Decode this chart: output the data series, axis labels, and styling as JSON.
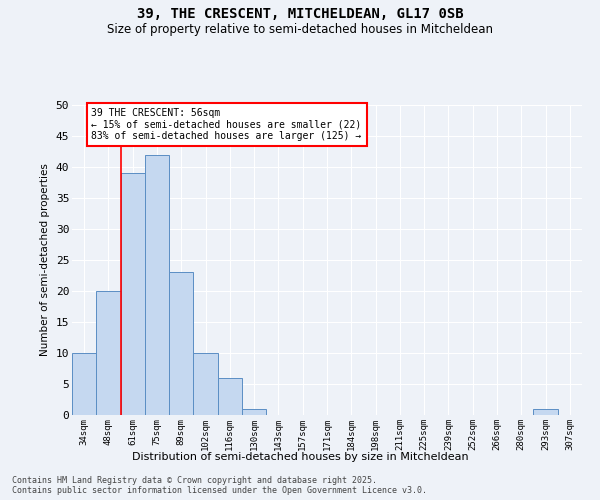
{
  "title": "39, THE CRESCENT, MITCHELDEAN, GL17 0SB",
  "subtitle": "Size of property relative to semi-detached houses in Mitcheldean",
  "xlabel": "Distribution of semi-detached houses by size in Mitcheldean",
  "ylabel": "Number of semi-detached properties",
  "bar_labels": [
    "34sqm",
    "48sqm",
    "61sqm",
    "75sqm",
    "89sqm",
    "102sqm",
    "116sqm",
    "130sqm",
    "143sqm",
    "157sqm",
    "171sqm",
    "184sqm",
    "198sqm",
    "211sqm",
    "225sqm",
    "239sqm",
    "252sqm",
    "266sqm",
    "280sqm",
    "293sqm",
    "307sqm"
  ],
  "bar_values": [
    10,
    20,
    39,
    42,
    23,
    10,
    6,
    1,
    0,
    0,
    0,
    0,
    0,
    0,
    0,
    0,
    0,
    0,
    0,
    1,
    0
  ],
  "bar_color": "#c5d8f0",
  "bar_edge_color": "#5b8ec4",
  "vline_x": 1.5,
  "vline_color": "red",
  "annotation_title": "39 THE CRESCENT: 56sqm",
  "annotation_line1": "← 15% of semi-detached houses are smaller (22)",
  "annotation_line2": "83% of semi-detached houses are larger (125) →",
  "ylim": [
    0,
    50
  ],
  "yticks": [
    0,
    5,
    10,
    15,
    20,
    25,
    30,
    35,
    40,
    45,
    50
  ],
  "background_color": "#eef2f8",
  "footer_line1": "Contains HM Land Registry data © Crown copyright and database right 2025.",
  "footer_line2": "Contains public sector information licensed under the Open Government Licence v3.0."
}
